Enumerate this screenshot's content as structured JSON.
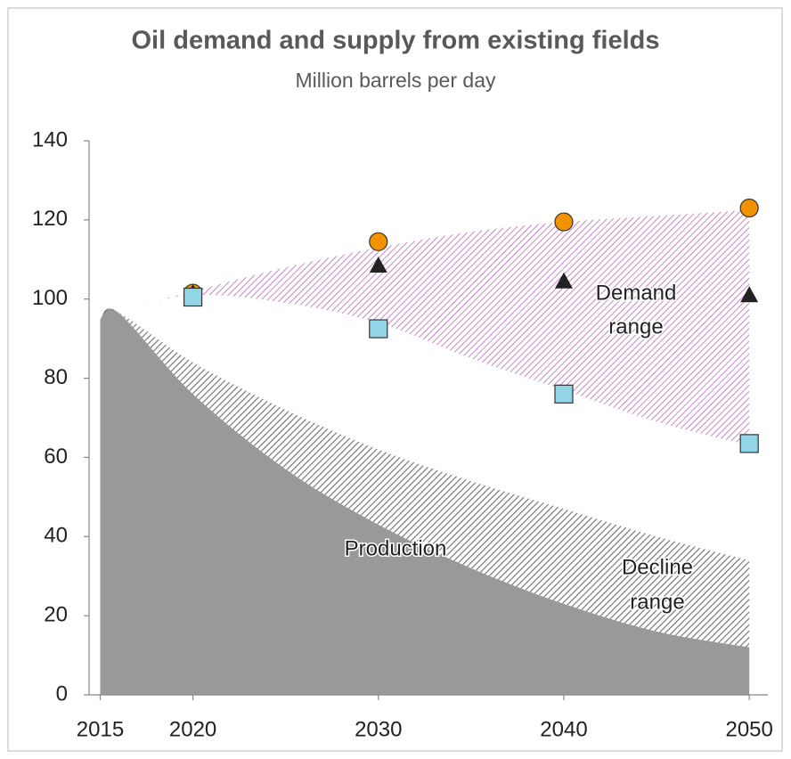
{
  "chart_data": {
    "type": "area-markers",
    "title": "Oil demand and supply from existing fields",
    "subtitle": "Million barrels per day",
    "xlim": [
      2014.4,
      2051
    ],
    "xticks": [
      2015,
      2020,
      2030,
      2040,
      2050
    ],
    "ylim": [
      0,
      140
    ],
    "yticks": [
      0,
      20,
      40,
      60,
      80,
      100,
      120,
      140
    ],
    "areas": [
      {
        "label": [
          "Production"
        ],
        "color": "#999999",
        "x": [
          2015,
          2016,
          2020,
          2025,
          2030,
          2035,
          2040,
          2045,
          2050
        ],
        "values": [
          95,
          96.5,
          76,
          57,
          43,
          32,
          23,
          16,
          12
        ]
      },
      {
        "label": [
          "Decline",
          "range"
        ],
        "color": "#6e6e6e",
        "x": [
          2015,
          2016,
          2020,
          2025,
          2030,
          2035,
          2040,
          2045,
          2050
        ],
        "lower": [
          95,
          96.5,
          76,
          57,
          43,
          32,
          23,
          16,
          12
        ],
        "upper": [
          95,
          96.5,
          84,
          72,
          62,
          54,
          47,
          40,
          34
        ]
      },
      {
        "label": [
          "Demand",
          "range"
        ],
        "color": "#b36ab3",
        "x": [
          2016,
          2020,
          2025,
          2030,
          2035,
          2040,
          2045,
          2050
        ],
        "lower": [
          97,
          101,
          99,
          94,
          85,
          77,
          69,
          63
        ],
        "upper": [
          97,
          102,
          108,
          113,
          117,
          119.5,
          121,
          122.5
        ]
      }
    ],
    "marker_x": [
      2020,
      2030,
      2040,
      2050
    ],
    "series": [
      {
        "marker": "circle",
        "color": "#f39200",
        "values": [
          101.5,
          114.5,
          119.5,
          123
        ]
      },
      {
        "marker": "triangle",
        "color": "#222222",
        "values": [
          101.5,
          108.5,
          104.5,
          101
        ]
      },
      {
        "marker": "square",
        "color": "#92d5e8",
        "values": [
          100.5,
          92.5,
          76,
          63.5
        ]
      }
    ]
  }
}
